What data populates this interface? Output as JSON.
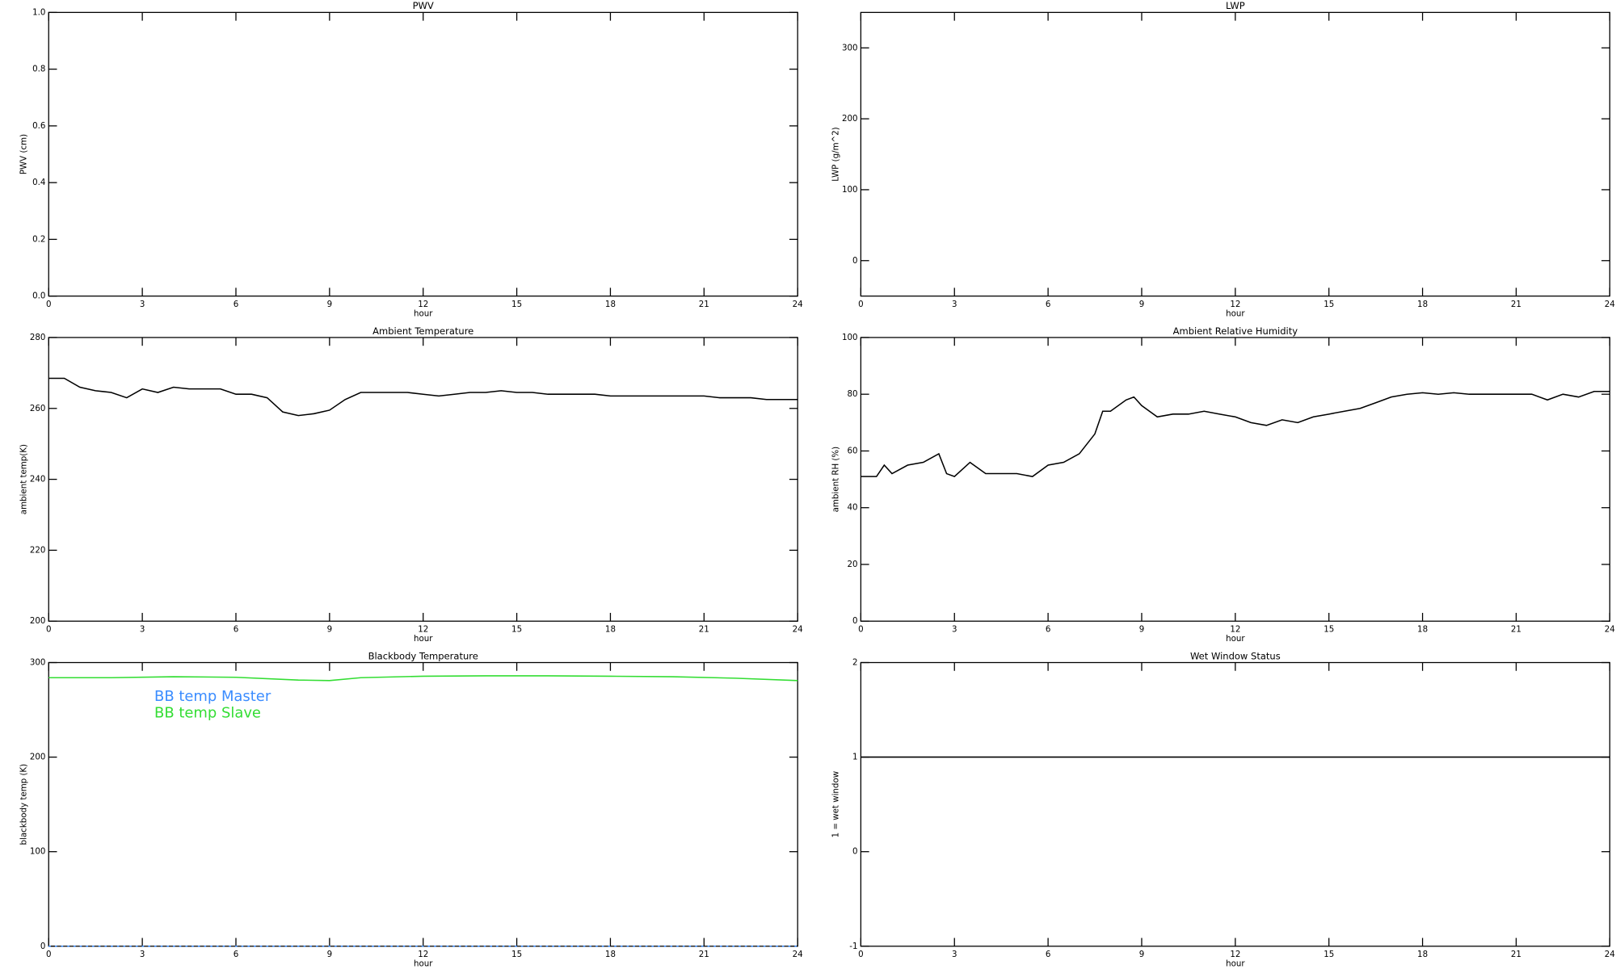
{
  "chart_data": [
    {
      "type": "line",
      "title": "PWV",
      "xlabel": "hour",
      "ylabel": "PWV (cm)",
      "xlim": [
        0,
        24
      ],
      "xticks": [
        0,
        3,
        6,
        9,
        12,
        15,
        18,
        21,
        24
      ],
      "ylim": [
        0,
        1
      ],
      "yticks": [
        {
          "value": 0,
          "label": "0.0"
        },
        0.2,
        0.4,
        0.6,
        0.8,
        {
          "value": 1,
          "label": "1.0"
        }
      ]
    },
    {
      "type": "line",
      "title": "LWP",
      "xlabel": "hour",
      "ylabel": "LWP (g/m^2)",
      "xlim": [
        0,
        24
      ],
      "xticks": [
        0,
        3,
        6,
        9,
        12,
        15,
        18,
        21,
        24
      ],
      "ylim": [
        -50,
        350
      ],
      "yticks": [
        0,
        100,
        200,
        300
      ]
    },
    {
      "type": "line",
      "title": "Ambient Temperature",
      "xlabel": "hour",
      "ylabel": "ambient temp(K)",
      "xlim": [
        0,
        24
      ],
      "xticks": [
        0,
        3,
        6,
        9,
        12,
        15,
        18,
        21,
        24
      ],
      "ylim": [
        200,
        280
      ],
      "yticks": [
        200,
        220,
        240,
        260,
        280
      ],
      "x": [
        0,
        0.5,
        1,
        1.5,
        2,
        2.5,
        3,
        3.5,
        4,
        4.5,
        5,
        5.5,
        6,
        6.5,
        7,
        7.5,
        8,
        8.5,
        9,
        9.5,
        10,
        10.5,
        11,
        11.5,
        12,
        12.5,
        13,
        13.5,
        14,
        14.5,
        15,
        15.5,
        16,
        16.5,
        17,
        17.5,
        18,
        18.5,
        19,
        19.5,
        20,
        20.5,
        21,
        21.5,
        22,
        22.5,
        23,
        23.5,
        24
      ],
      "series": [
        {
          "color": "#000000",
          "values": [
            268.5,
            268.5,
            266,
            265,
            264.5,
            263,
            265.5,
            264.5,
            266,
            265.5,
            265.5,
            265.5,
            264,
            264,
            263,
            259,
            258,
            258.5,
            259.5,
            262.5,
            264.5,
            264.5,
            264.5,
            264.5,
            264,
            263.5,
            264,
            264.5,
            264.5,
            265,
            264.5,
            264.5,
            264,
            264,
            264,
            264,
            263.5,
            263.5,
            263.5,
            263.5,
            263.5,
            263.5,
            263.5,
            263,
            263,
            263,
            262.5,
            262.5,
            262.5
          ]
        }
      ]
    },
    {
      "type": "line",
      "title": "Ambient Relative Humidity",
      "xlabel": "hour",
      "ylabel": "ambient RH (%)",
      "xlim": [
        0,
        24
      ],
      "xticks": [
        0,
        3,
        6,
        9,
        12,
        15,
        18,
        21,
        24
      ],
      "ylim": [
        0,
        100
      ],
      "yticks": [
        0,
        20,
        40,
        60,
        80,
        100
      ],
      "x": [
        0,
        0.5,
        0.75,
        1,
        1.5,
        2,
        2.5,
        2.75,
        3,
        3.5,
        4,
        4.5,
        5,
        5.5,
        6,
        6.5,
        7,
        7.5,
        7.75,
        8,
        8.5,
        8.75,
        9,
        9.5,
        10,
        10.5,
        11,
        11.5,
        12,
        12.5,
        13,
        13.5,
        14,
        14.5,
        15,
        15.5,
        16,
        16.5,
        17,
        17.5,
        18,
        18.5,
        19,
        19.5,
        20,
        20.5,
        21,
        21.5,
        22,
        22.5,
        23,
        23.5,
        24
      ],
      "series": [
        {
          "color": "#000000",
          "values": [
            51,
            51,
            55,
            52,
            55,
            56,
            59,
            52,
            51,
            56,
            52,
            52,
            52,
            51,
            55,
            56,
            59,
            66,
            74,
            74,
            78,
            79,
            76,
            72,
            73,
            73,
            74,
            73,
            72,
            70,
            69,
            71,
            70,
            72,
            73,
            74,
            75,
            77,
            79,
            80,
            80.5,
            80,
            80.5,
            80,
            80,
            80,
            80,
            80,
            78,
            80,
            79,
            81,
            81
          ]
        }
      ]
    },
    {
      "type": "line",
      "title": "Blackbody Temperature",
      "xlabel": "hour",
      "ylabel": "blackbody temp (K)",
      "xlim": [
        0,
        24
      ],
      "xticks": [
        0,
        3,
        6,
        9,
        12,
        15,
        18,
        21,
        24
      ],
      "ylim": [
        0,
        300
      ],
      "yticks": [
        0,
        100,
        200,
        300
      ],
      "x": [
        0,
        2,
        4,
        6,
        8,
        9,
        10,
        12,
        14,
        16,
        18,
        20,
        22,
        24
      ],
      "series": [
        {
          "name": "BB temp Master",
          "color": "#3a8cff",
          "values": [
            0,
            0,
            0,
            0,
            0,
            0,
            0,
            0,
            0,
            0,
            0,
            0,
            0,
            0
          ]
        },
        {
          "name": "BB temp Slave",
          "color": "#33dd33",
          "values": [
            284,
            284,
            285,
            284.5,
            281.5,
            281,
            284,
            285.5,
            286,
            286,
            285.5,
            285,
            283.5,
            281
          ]
        }
      ]
    },
    {
      "type": "line",
      "title": "Wet Window Status",
      "xlabel": "hour",
      "ylabel": "1 = wet window",
      "xlim": [
        0,
        24
      ],
      "xticks": [
        0,
        3,
        6,
        9,
        12,
        15,
        18,
        21,
        24
      ],
      "ylim": [
        -1,
        2
      ],
      "yticks": [
        -1,
        0,
        1,
        2
      ],
      "x": [
        0,
        24
      ],
      "series": [
        {
          "color": "#000000",
          "values": [
            1,
            1
          ]
        }
      ]
    }
  ]
}
